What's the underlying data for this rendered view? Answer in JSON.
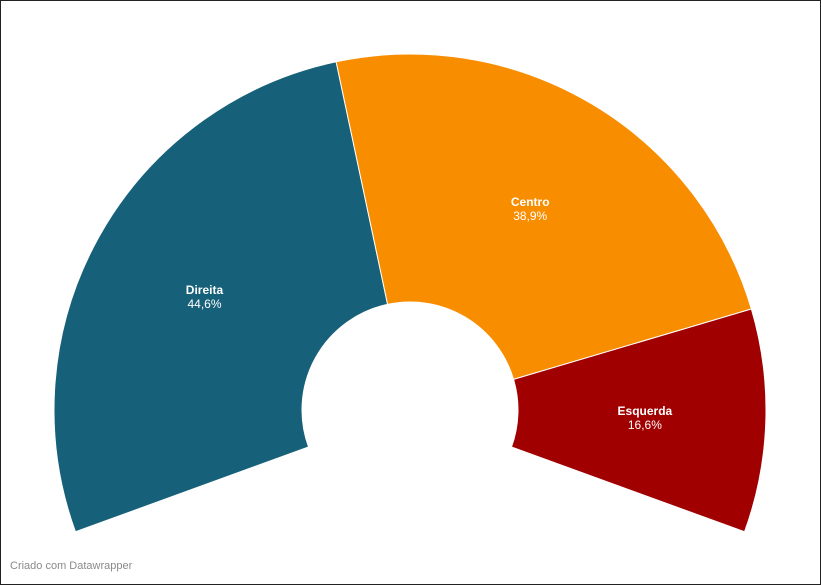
{
  "chart_data": {
    "type": "pie",
    "variant": "semi-donut",
    "series": [
      {
        "name": "Direita",
        "value": 44.6,
        "label": "44,6%",
        "color": "#17607a"
      },
      {
        "name": "Centro",
        "value": 38.9,
        "label": "38,9%",
        "color": "#f88d00"
      },
      {
        "name": "Esquerda",
        "value": 16.6,
        "label": "16,6%",
        "color": "#a00000"
      }
    ],
    "arc_start_deg": 250,
    "arc_end_deg": 470,
    "separator_color": "#ffffff"
  },
  "footer": {
    "credit": "Criado com Datawrapper"
  }
}
